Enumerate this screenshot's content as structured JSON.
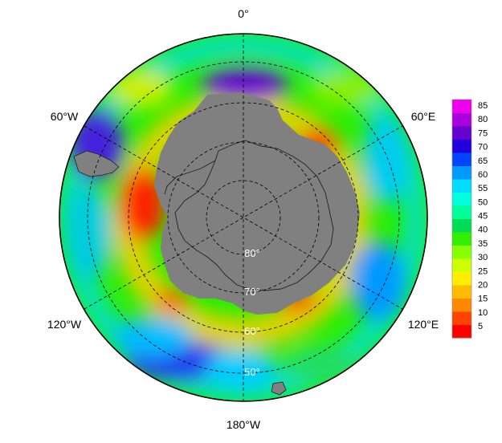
{
  "map": {
    "projection": "south-polar-stereographic",
    "longitude_labels": {
      "top": "0°",
      "upper_left": "60°W",
      "upper_right": "60°E",
      "lower_left": "120°W",
      "lower_right": "120°E",
      "bottom": "180°W"
    },
    "latitude_labels": [
      "80°",
      "70°",
      "60°",
      "50°"
    ],
    "colors": {
      "land": "#808080",
      "coast": "#222222",
      "grid": "#000000"
    }
  },
  "colorbar": {
    "ticks": [
      "85",
      "80",
      "75",
      "70",
      "65",
      "60",
      "55",
      "50",
      "45",
      "40",
      "35",
      "30",
      "25",
      "20",
      "15",
      "10",
      "5"
    ],
    "colors": [
      "#ff0000",
      "#ff4400",
      "#ff8800",
      "#ffbb00",
      "#ffee00",
      "#ccff00",
      "#88ff00",
      "#33ee00",
      "#00dd55",
      "#00ff99",
      "#00ffdd",
      "#00ddff",
      "#0099ff",
      "#0044ff",
      "#2200dd",
      "#6600cc",
      "#aa00dd",
      "#ee00ee"
    ]
  }
}
